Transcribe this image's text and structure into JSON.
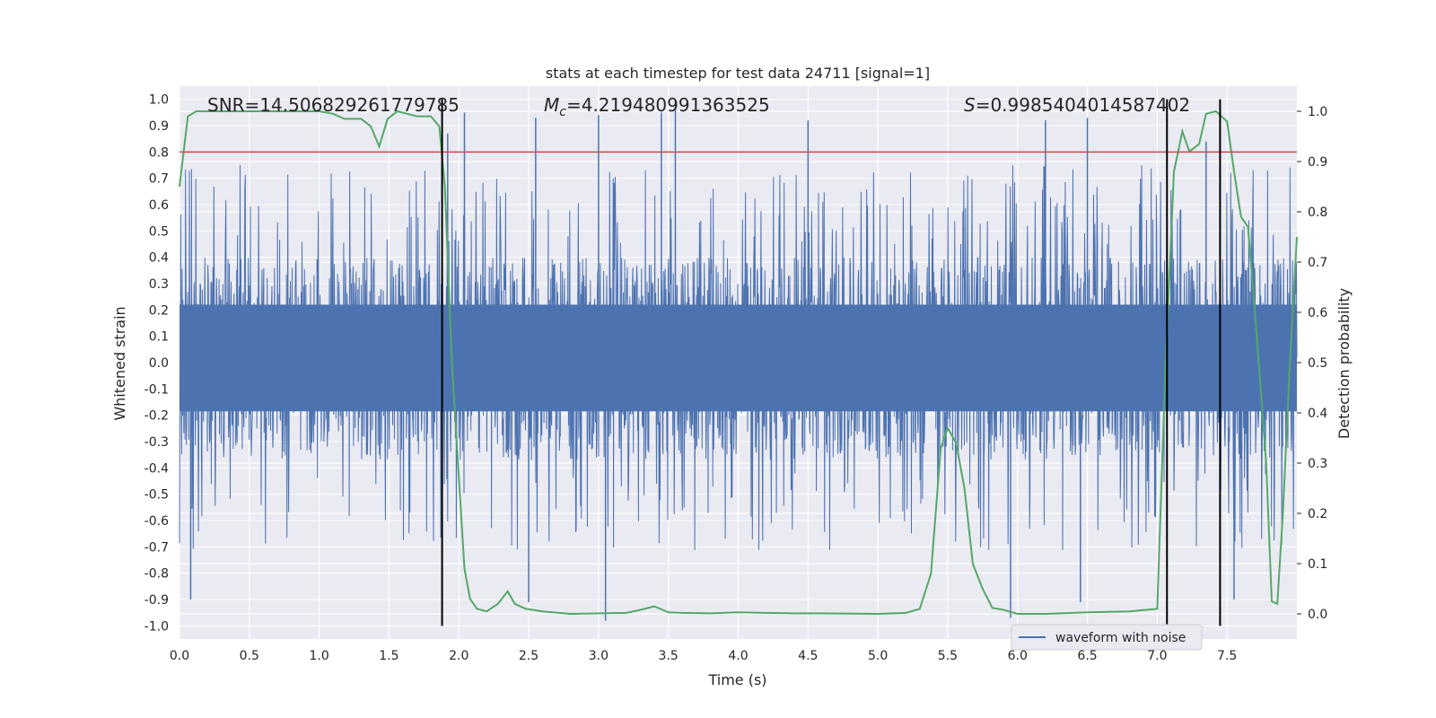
{
  "chart_data": {
    "type": "line",
    "title": "stats at each timestep for test data 24711 [signal=1]",
    "xlabel": "Time (s)",
    "ylabel_left": "Whitened strain",
    "ylabel_right": "Detection probability",
    "xlim": [
      0.0,
      8.0
    ],
    "ylim_left": [
      -1.05,
      1.05
    ],
    "ylim_right": [
      -0.05,
      1.05
    ],
    "x_ticks": [
      "0.0",
      "0.5",
      "1.0",
      "1.5",
      "2.0",
      "2.5",
      "3.0",
      "3.5",
      "4.0",
      "4.5",
      "5.0",
      "5.5",
      "6.0",
      "6.5",
      "7.0",
      "7.5"
    ],
    "y_ticks_left": [
      "1.0",
      "0.9",
      "0.8",
      "0.7",
      "0.6",
      "0.5",
      "0.4",
      "0.3",
      "0.2",
      "0.1",
      "0.0",
      "-0.1",
      "-0.2",
      "-0.3",
      "-0.4",
      "-0.5",
      "-0.6",
      "-0.7",
      "-0.8",
      "-0.9",
      "-1.0"
    ],
    "y_ticks_right": [
      "1.0",
      "0.9",
      "0.8",
      "0.7",
      "0.6",
      "0.5",
      "0.4",
      "0.3",
      "0.2",
      "0.1",
      "0.0"
    ],
    "grid": true,
    "legend_position": "bottom-right",
    "annotations": {
      "snr_text": "SNR=14.506829261779785",
      "mc_symbol": "M",
      "mc_sub": "c",
      "mc_value": "=4.219480991363525",
      "s_symbol": "S",
      "s_value": "=0.9985404014587402"
    },
    "series": [
      {
        "name": "waveform with noise",
        "axis": "left",
        "color": "#4c72b0",
        "dense_band": [
          -0.37,
          0.4
        ],
        "spike_extremes_positive": [
          {
            "x": 2.04,
            "y": 0.95
          },
          {
            "x": 3.55,
            "y": 1.0
          },
          {
            "x": 3.45,
            "y": 0.95
          },
          {
            "x": 4.5,
            "y": 0.92
          },
          {
            "x": 1.92,
            "y": 0.87
          },
          {
            "x": 2.55,
            "y": 0.93
          },
          {
            "x": 3.0,
            "y": 0.94
          },
          {
            "x": 6.5,
            "y": 0.93
          },
          {
            "x": 7.35,
            "y": 0.84
          },
          {
            "x": 6.2,
            "y": 0.92
          }
        ],
        "spike_extremes_negative": [
          {
            "x": 3.05,
            "y": -0.98
          },
          {
            "x": 5.95,
            "y": -0.97
          },
          {
            "x": 0.08,
            "y": -0.9
          },
          {
            "x": 2.5,
            "y": -0.91
          },
          {
            "x": 6.45,
            "y": -0.91
          },
          {
            "x": 7.55,
            "y": -0.9
          }
        ]
      },
      {
        "name": "detection probability",
        "axis": "right",
        "color": "#55a868",
        "x": [
          0.0,
          0.06,
          0.12,
          0.2,
          0.4,
          0.6,
          0.8,
          1.0,
          1.1,
          1.18,
          1.3,
          1.37,
          1.43,
          1.49,
          1.56,
          1.7,
          1.8,
          1.86,
          1.9,
          1.95,
          2.0,
          2.04,
          2.08,
          2.13,
          2.2,
          2.28,
          2.35,
          2.4,
          2.48,
          2.6,
          2.8,
          3.0,
          3.2,
          3.3,
          3.4,
          3.5,
          3.6,
          3.8,
          4.0,
          4.2,
          4.4,
          4.6,
          5.0,
          5.2,
          5.3,
          5.38,
          5.45,
          5.5,
          5.56,
          5.62,
          5.68,
          5.75,
          5.82,
          5.9,
          6.0,
          6.2,
          6.5,
          6.8,
          7.0,
          7.06,
          7.12,
          7.18,
          7.23,
          7.3,
          7.35,
          7.42,
          7.5,
          7.55,
          7.6,
          7.65,
          7.7,
          7.78,
          7.82,
          7.86,
          7.9,
          7.95,
          8.0
        ],
        "y": [
          0.85,
          0.99,
          1.0,
          1.0,
          1.0,
          1.0,
          1.0,
          1.0,
          0.995,
          0.985,
          0.985,
          0.97,
          0.93,
          0.985,
          1.0,
          0.99,
          0.99,
          0.97,
          0.85,
          0.5,
          0.27,
          0.09,
          0.03,
          0.01,
          0.005,
          0.02,
          0.045,
          0.02,
          0.01,
          0.005,
          0.0,
          0.001,
          0.002,
          0.008,
          0.015,
          0.003,
          0.002,
          0.001,
          0.003,
          0.002,
          0.001,
          0.001,
          0.0,
          0.002,
          0.01,
          0.08,
          0.33,
          0.37,
          0.34,
          0.25,
          0.1,
          0.05,
          0.012,
          0.008,
          0.0,
          0.0,
          0.003,
          0.005,
          0.01,
          0.5,
          0.88,
          0.96,
          0.92,
          0.935,
          0.995,
          1.0,
          0.98,
          0.88,
          0.79,
          0.77,
          0.6,
          0.3,
          0.025,
          0.02,
          0.2,
          0.5,
          0.75
        ]
      }
    ],
    "threshold_line": {
      "axis": "left",
      "y": 0.8,
      "color": "#c44e52"
    },
    "vertical_lines_x": [
      1.88,
      7.07,
      7.45
    ],
    "vertical_line_range_left": [
      -1.0,
      1.0
    ],
    "legend": {
      "label": "waveform with noise"
    }
  }
}
